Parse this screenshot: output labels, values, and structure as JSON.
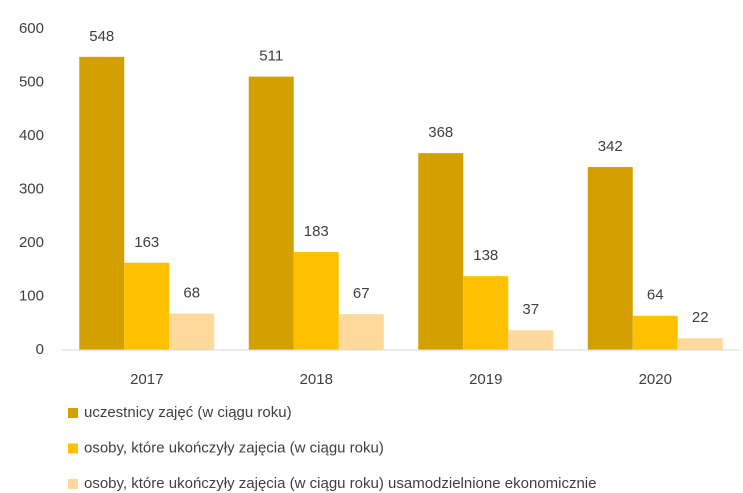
{
  "chart_data": {
    "type": "bar",
    "categories": [
      "2017",
      "2018",
      "2019",
      "2020"
    ],
    "series": [
      {
        "name": "uczestnicy zajęć (w ciągu roku)",
        "color": "#d4a000",
        "values": [
          548,
          511,
          368,
          342
        ]
      },
      {
        "name": "osoby, które ukończyły zajęcia (w ciągu roku)",
        "color": "#ffc000",
        "values": [
          163,
          183,
          138,
          64
        ]
      },
      {
        "name": "osoby, które ukończyły zajęcia (w ciągu roku) usamodzielnione ekonomicznie",
        "color": "#ffd99c",
        "values": [
          68,
          67,
          37,
          22
        ]
      }
    ],
    "ylim": [
      0,
      600
    ],
    "yticks": [
      0,
      100,
      200,
      300,
      400,
      500,
      600
    ],
    "grid": false,
    "legend": "bottom"
  }
}
